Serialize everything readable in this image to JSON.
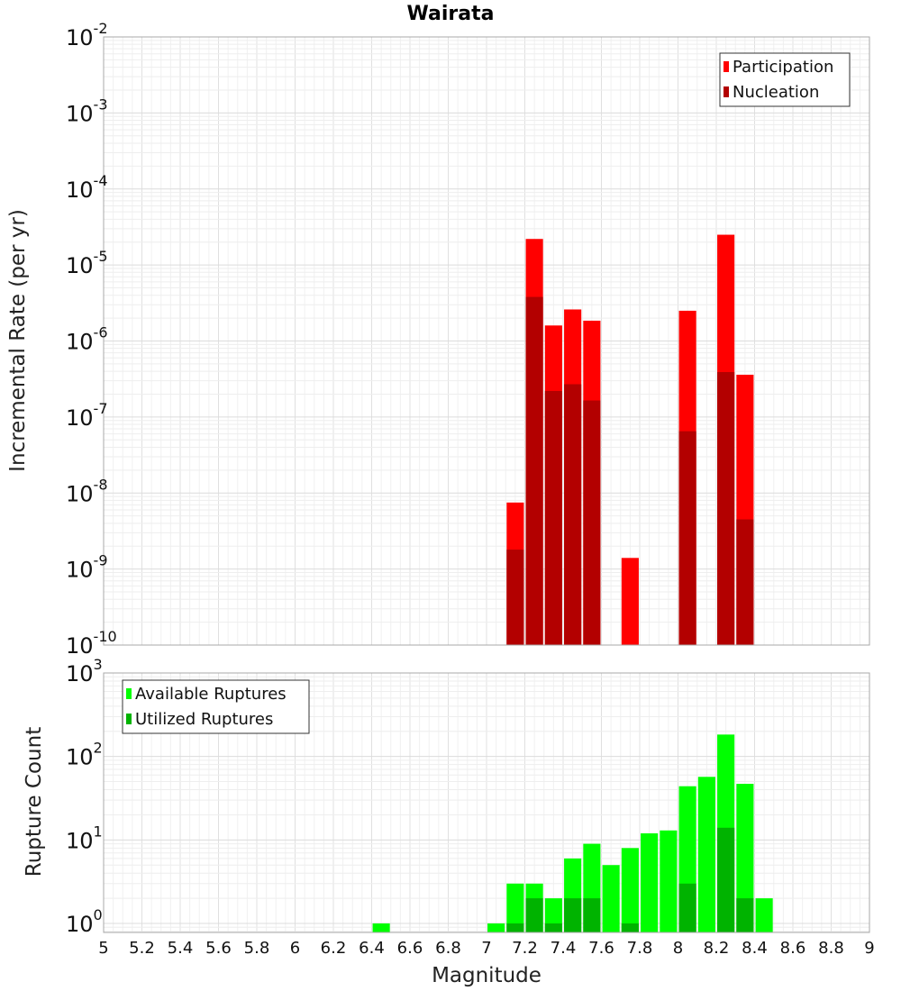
{
  "chart_data": [
    {
      "type": "bar",
      "title": "Wairata",
      "xlabel": "Magnitude",
      "ylabel": "Incremental Rate (per yr)",
      "xlim": [
        5,
        9
      ],
      "ylim": [
        1e-10,
        0.01
      ],
      "yscale": "log",
      "grid": true,
      "legend_position": "top-right",
      "y_tick_labels": [
        {
          "base": "10",
          "exp": "-2",
          "value": 0.01
        },
        {
          "base": "10",
          "exp": "-3",
          "value": 0.001
        },
        {
          "base": "10",
          "exp": "-4",
          "value": 0.0001
        },
        {
          "base": "10",
          "exp": "-5",
          "value": 1e-05
        },
        {
          "base": "10",
          "exp": "-6",
          "value": 1e-06
        },
        {
          "base": "10",
          "exp": "-7",
          "value": 1e-07
        },
        {
          "base": "10",
          "exp": "-8",
          "value": 1e-08
        },
        {
          "base": "10",
          "exp": "-9",
          "value": 1e-09
        },
        {
          "base": "10",
          "exp": "-10",
          "value": 1e-10
        }
      ],
      "series": [
        {
          "name": "Participation",
          "color": "#ff0000",
          "points": [
            {
              "x": 7.15,
              "y": 7.5e-09
            },
            {
              "x": 7.25,
              "y": 2.2e-05
            },
            {
              "x": 7.35,
              "y": 1.6e-06
            },
            {
              "x": 7.45,
              "y": 2.6e-06
            },
            {
              "x": 7.55,
              "y": 1.85e-06
            },
            {
              "x": 7.75,
              "y": 1.4e-09
            },
            {
              "x": 8.05,
              "y": 2.5e-06
            },
            {
              "x": 8.25,
              "y": 2.5e-05
            },
            {
              "x": 8.35,
              "y": 3.6e-07
            }
          ]
        },
        {
          "name": "Nucleation",
          "color": "#b30000",
          "points": [
            {
              "x": 7.15,
              "y": 1.8e-09
            },
            {
              "x": 7.25,
              "y": 3.8e-06
            },
            {
              "x": 7.35,
              "y": 2.2e-07
            },
            {
              "x": 7.45,
              "y": 2.7e-07
            },
            {
              "x": 7.55,
              "y": 1.65e-07
            },
            {
              "x": 8.05,
              "y": 6.5e-08
            },
            {
              "x": 8.25,
              "y": 3.9e-07
            },
            {
              "x": 8.35,
              "y": 4.5e-09
            }
          ]
        }
      ]
    },
    {
      "type": "bar",
      "xlabel": "Magnitude",
      "ylabel": "Rupture Count",
      "xlim": [
        5,
        9
      ],
      "ylim": [
        0.78,
        1000
      ],
      "yscale": "log",
      "grid": true,
      "legend_position": "top-left",
      "x_tick_labels": [
        "5",
        "5.2",
        "5.4",
        "5.6",
        "5.8",
        "6",
        "6.2",
        "6.4",
        "6.6",
        "6.8",
        "7",
        "7.2",
        "7.4",
        "7.6",
        "7.8",
        "8",
        "8.2",
        "8.4",
        "8.6",
        "8.8",
        "9"
      ],
      "y_tick_labels": [
        {
          "base": "10",
          "exp": "3",
          "value": 1000
        },
        {
          "base": "10",
          "exp": "2",
          "value": 100
        },
        {
          "base": "10",
          "exp": "1",
          "value": 10
        },
        {
          "base": "10",
          "exp": "0",
          "value": 1
        }
      ],
      "series": [
        {
          "name": "Available Ruptures",
          "color": "#00ff00",
          "points": [
            {
              "x": 6.45,
              "y": 1
            },
            {
              "x": 7.05,
              "y": 1
            },
            {
              "x": 7.15,
              "y": 3
            },
            {
              "x": 7.25,
              "y": 3
            },
            {
              "x": 7.35,
              "y": 2
            },
            {
              "x": 7.45,
              "y": 6
            },
            {
              "x": 7.55,
              "y": 9
            },
            {
              "x": 7.65,
              "y": 5
            },
            {
              "x": 7.75,
              "y": 8
            },
            {
              "x": 7.85,
              "y": 12
            },
            {
              "x": 7.95,
              "y": 13
            },
            {
              "x": 8.05,
              "y": 44
            },
            {
              "x": 8.15,
              "y": 57
            },
            {
              "x": 8.25,
              "y": 183
            },
            {
              "x": 8.35,
              "y": 47
            },
            {
              "x": 8.45,
              "y": 2
            }
          ]
        },
        {
          "name": "Utilized Ruptures",
          "color": "#00b300",
          "points": [
            {
              "x": 7.15,
              "y": 1
            },
            {
              "x": 7.25,
              "y": 2
            },
            {
              "x": 7.35,
              "y": 1
            },
            {
              "x": 7.45,
              "y": 2
            },
            {
              "x": 7.55,
              "y": 2
            },
            {
              "x": 7.75,
              "y": 1
            },
            {
              "x": 8.05,
              "y": 3
            },
            {
              "x": 8.25,
              "y": 14
            },
            {
              "x": 8.35,
              "y": 2
            }
          ]
        }
      ]
    }
  ]
}
